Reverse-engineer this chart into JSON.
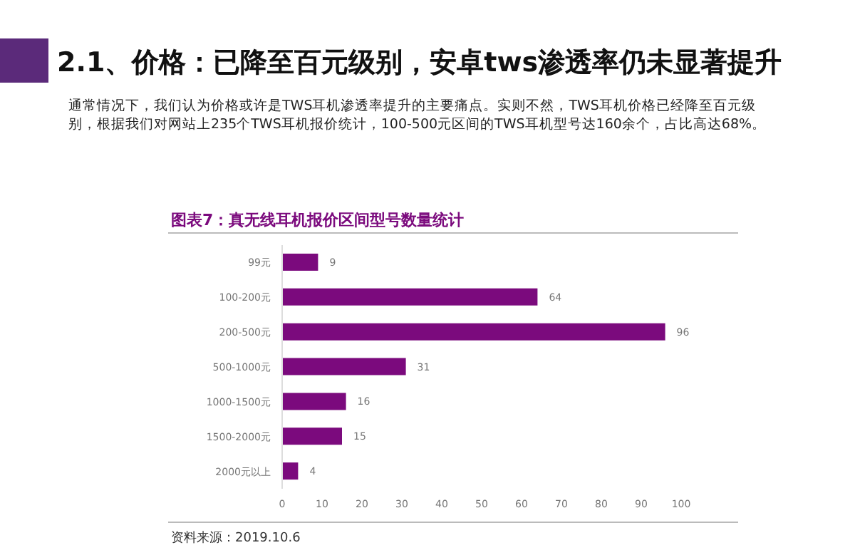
{
  "chart_data": {
    "type": "bar",
    "orientation": "horizontal",
    "title": "2.1、价格：已降至百元级别，安卓tws渗透率仍未显著提升",
    "subtitle": "通常情况下，我们认为价格或许是TWS耳机渗透率提升的主要痛点。实则不然，TWS耳机价格已经降至百元级别，根据我们对网站上235个TWS耳机报价统计，100-500元区间的TWS耳机型号达160余个，占比高达68%。",
    "annotations": [
      "图表7：真无线耳机报价区间型号数量统计",
      "资料来源：2019.10.6"
    ],
    "categories": [
      "99元",
      "100-200元",
      "200-500元",
      "500-1000元",
      "1000-1500元",
      "1500-2000元",
      "2000元以上"
    ],
    "values": [
      9,
      64,
      96,
      31,
      16,
      15,
      4
    ],
    "color": "#7b0a7d",
    "data_labels": true,
    "xlim": [
      0,
      100
    ],
    "xticks": [
      0,
      10,
      20,
      30,
      40,
      50,
      60,
      70,
      80,
      90,
      100
    ]
  }
}
